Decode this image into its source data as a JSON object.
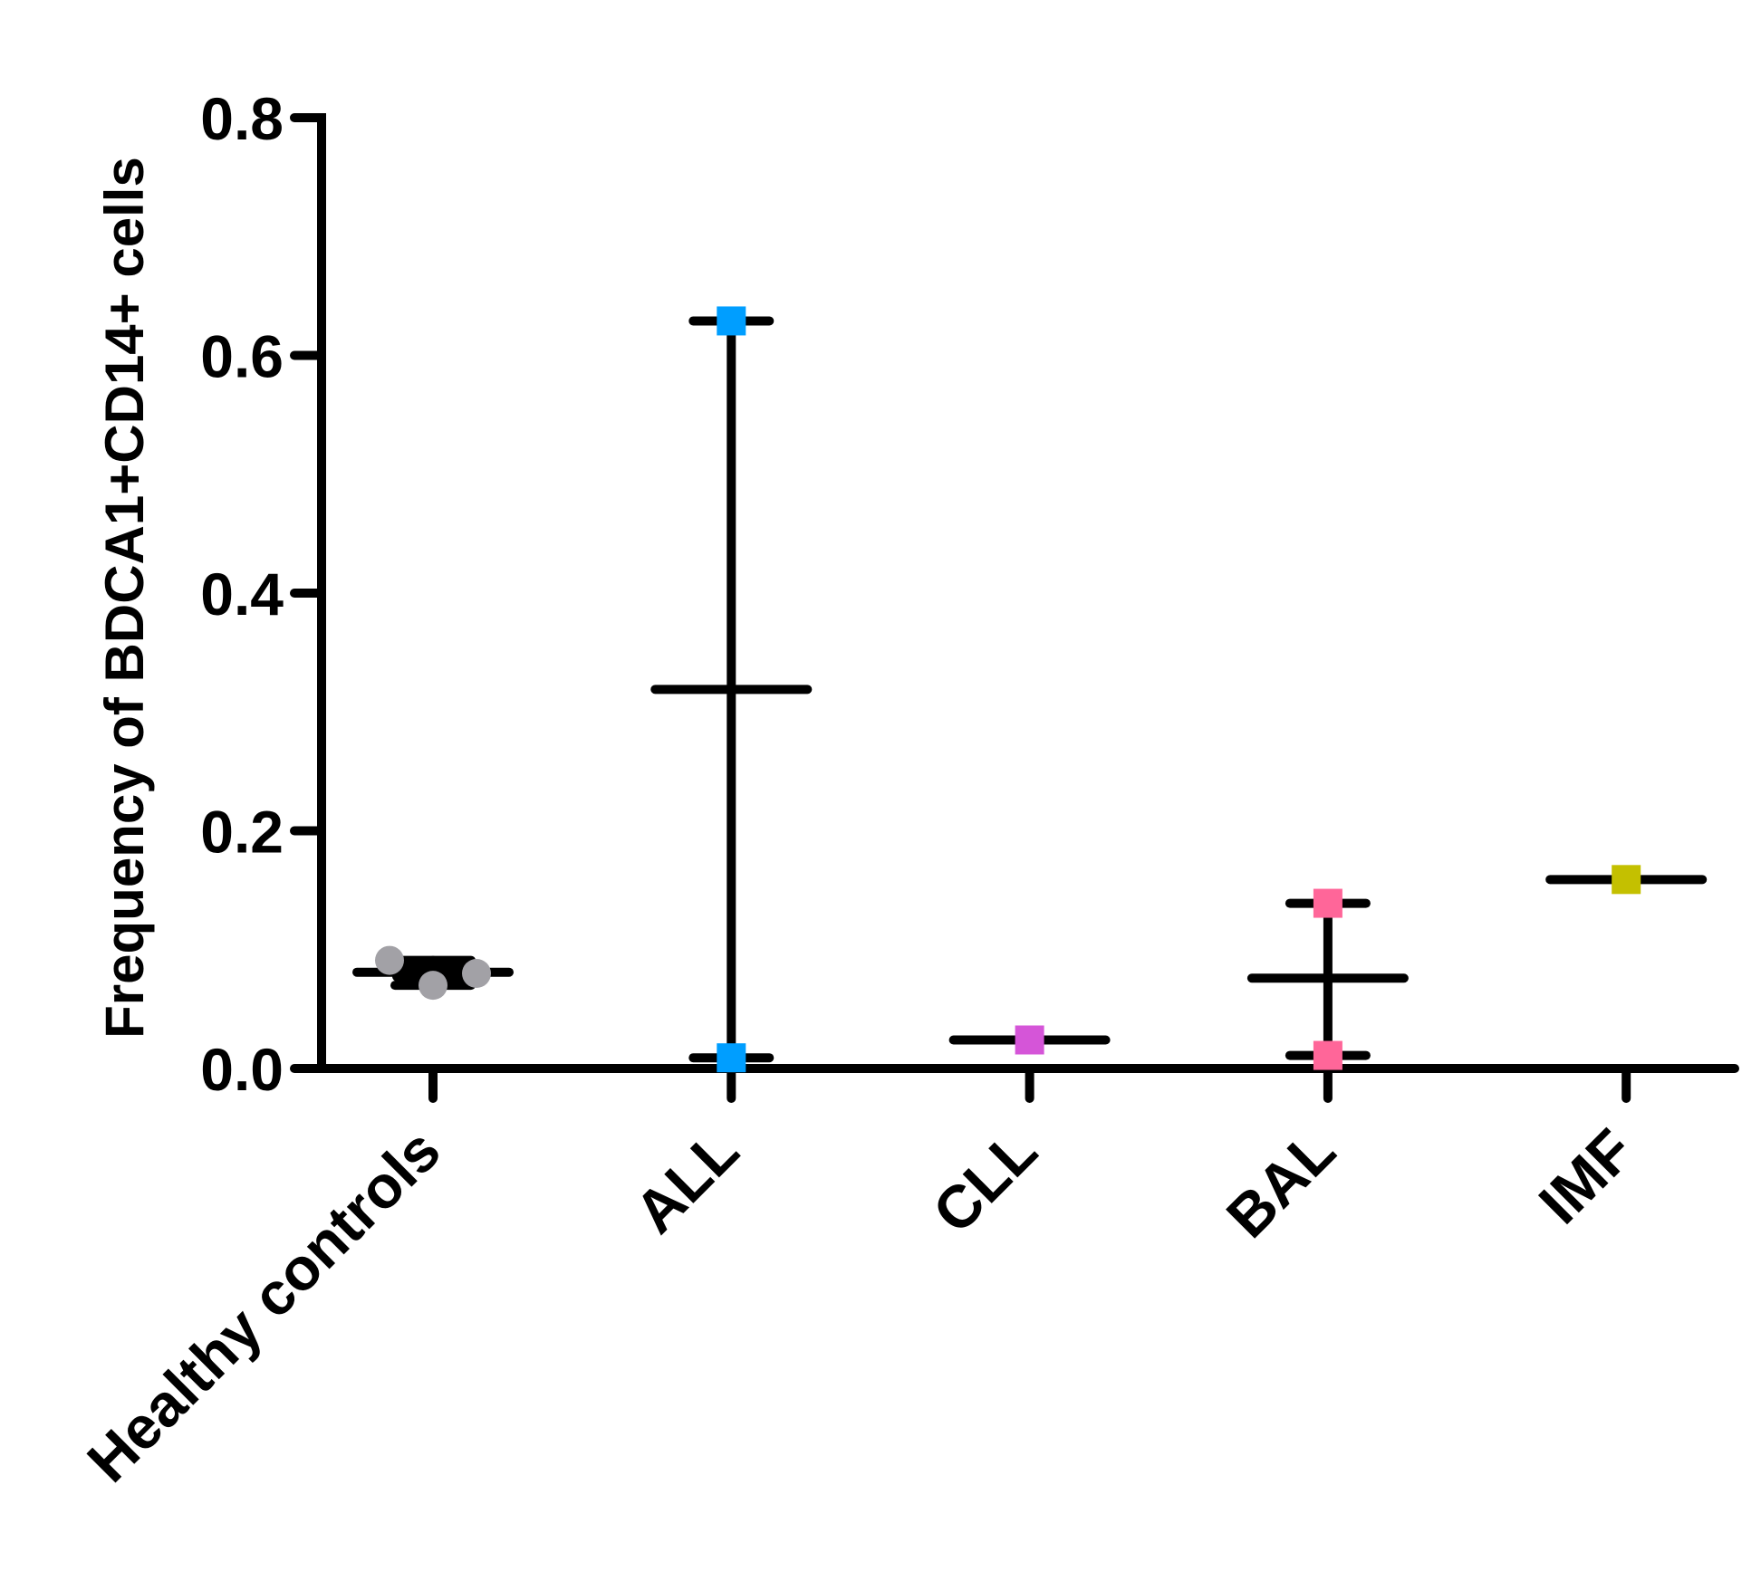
{
  "chart_data": {
    "type": "scatter",
    "subtype": "dot plot with mean and range bars",
    "title": "",
    "xlabel": "",
    "ylabel": "Frequency of BDCA1+CD14+ cells",
    "ylim": [
      0,
      0.8
    ],
    "yticks": [
      0.0,
      0.2,
      0.4,
      0.6,
      0.8
    ],
    "ytick_labels": [
      "0.0",
      "0.2",
      "0.4",
      "0.6",
      "0.8"
    ],
    "grid": false,
    "legend": null,
    "categories": [
      "Healthy controls",
      "ALL",
      "CLL",
      "BAL",
      "IMF"
    ],
    "series": [
      {
        "name": "Healthy controls",
        "marker": "circle",
        "color": "#A2A1A6",
        "values": [
          0.091,
          0.07,
          0.08
        ],
        "mean": 0.081,
        "range": [
          0.07,
          0.091
        ]
      },
      {
        "name": "ALL",
        "marker": "square",
        "color": "#009EFF",
        "values": [
          0.629,
          0.009
        ],
        "mean": 0.319,
        "range": [
          0.009,
          0.629
        ]
      },
      {
        "name": "CLL",
        "marker": "square",
        "color": "#D555D8",
        "values": [
          0.024
        ],
        "mean": 0.024,
        "range": [
          0.024,
          0.024
        ]
      },
      {
        "name": "BAL",
        "marker": "square",
        "color": "#FF6699",
        "values": [
          0.139,
          0.011
        ],
        "mean": 0.076,
        "range": [
          0.011,
          0.139
        ]
      },
      {
        "name": "IMF",
        "marker": "square",
        "color": "#C4C000",
        "values": [
          0.159
        ],
        "mean": 0.159,
        "range": [
          0.159,
          0.159
        ]
      }
    ]
  }
}
